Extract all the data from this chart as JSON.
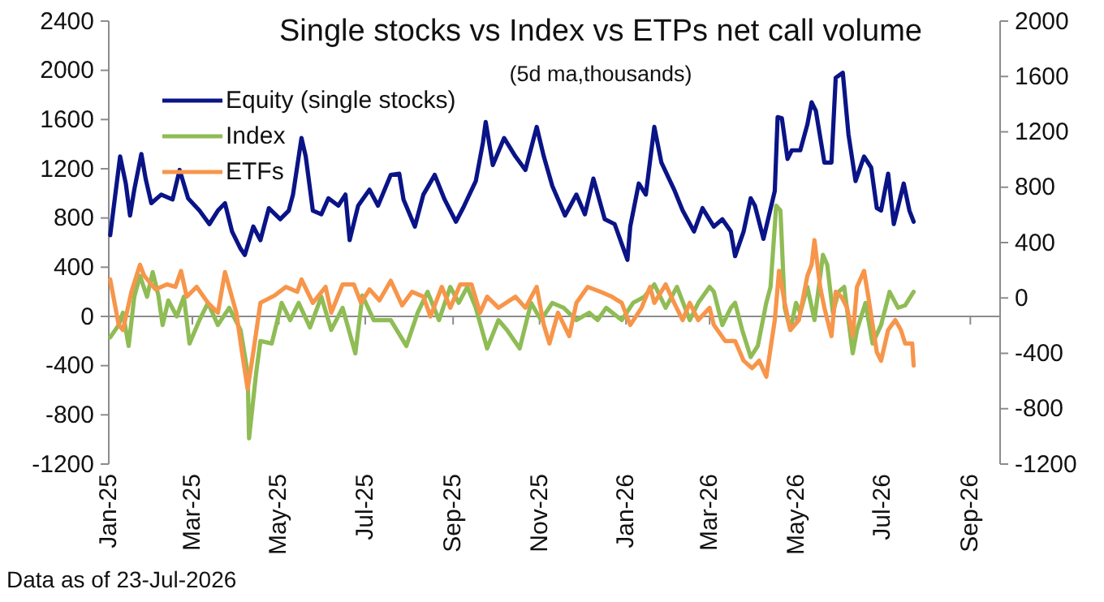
{
  "chart_data": {
    "type": "line",
    "title": "Single stocks vs Index vs ETPs net call volume",
    "subtitle": "(5d ma,thousands)",
    "annotations": [
      "Data as of 23-Jul-2026"
    ],
    "legend": "top left",
    "xlim": [
      "2025-01-01",
      "2026-09-22"
    ],
    "xticks": [
      {
        "value": "2025-01-01",
        "label": "Jan-25"
      },
      {
        "value": "2025-03-01",
        "label": "Mar-25"
      },
      {
        "value": "2025-05-01",
        "label": "May-25"
      },
      {
        "value": "2025-07-01",
        "label": "Jul-25"
      },
      {
        "value": "2025-09-01",
        "label": "Sep-25"
      },
      {
        "value": "2025-11-01",
        "label": "Nov-25"
      },
      {
        "value": "2026-01-01",
        "label": "Jan-26"
      },
      {
        "value": "2026-03-01",
        "label": "Mar-26"
      },
      {
        "value": "2026-05-01",
        "label": "May-26"
      },
      {
        "value": "2026-07-01",
        "label": "Jul-26"
      },
      {
        "value": "2026-09-01",
        "label": "Sep-26"
      }
    ],
    "ylim": [
      -1200,
      2400
    ],
    "yticks": [
      -1200,
      -800,
      -400,
      0,
      400,
      800,
      1200,
      1600,
      2000,
      2400
    ],
    "y2lim": [
      -1200,
      2000
    ],
    "y2ticks": [
      -1200,
      -800,
      -400,
      0,
      400,
      800,
      1200,
      1600,
      2000
    ],
    "series": [
      {
        "name": "Equity (single stocks)",
        "color": "#0a1487",
        "x": [
          "2025-01-02",
          "2025-01-09",
          "2025-01-13",
          "2025-01-16",
          "2025-01-19",
          "2025-01-24",
          "2025-01-27",
          "2025-01-31",
          "2025-02-07",
          "2025-02-15",
          "2025-02-20",
          "2025-02-26",
          "2025-03-06",
          "2025-03-13",
          "2025-03-19",
          "2025-03-24",
          "2025-03-29",
          "2025-04-04",
          "2025-04-07",
          "2025-04-13",
          "2025-04-18",
          "2025-04-24",
          "2025-05-02",
          "2025-05-08",
          "2025-05-11",
          "2025-05-17",
          "2025-05-20",
          "2025-05-25",
          "2025-05-31",
          "2025-06-05",
          "2025-06-12",
          "2025-06-17",
          "2025-06-20",
          "2025-06-26",
          "2025-07-04",
          "2025-07-10",
          "2025-07-19",
          "2025-07-25",
          "2025-07-28",
          "2025-08-05",
          "2025-08-11",
          "2025-08-19",
          "2025-08-26",
          "2025-09-03",
          "2025-09-08",
          "2025-09-17",
          "2025-09-22",
          "2025-09-24",
          "2025-09-29",
          "2025-10-07",
          "2025-10-15",
          "2025-10-22",
          "2025-10-30",
          "2025-11-04",
          "2025-11-10",
          "2025-11-19",
          "2025-11-27",
          "2025-12-03",
          "2025-12-09",
          "2025-12-17",
          "2025-12-24",
          "2026-01-02",
          "2026-01-04",
          "2026-01-10",
          "2026-01-15",
          "2026-01-21",
          "2026-01-26",
          "2026-02-04",
          "2026-02-10",
          "2026-02-18",
          "2026-02-24",
          "2026-03-04",
          "2026-03-10",
          "2026-03-16",
          "2026-03-19",
          "2026-03-25",
          "2026-03-30",
          "2026-04-02",
          "2026-04-08",
          "2026-04-16",
          "2026-04-18",
          "2026-04-21",
          "2026-04-25",
          "2026-04-28",
          "2026-05-04",
          "2026-05-09",
          "2026-05-12",
          "2026-05-15",
          "2026-05-21",
          "2026-05-26",
          "2026-05-29",
          "2026-06-03",
          "2026-06-07",
          "2026-06-12",
          "2026-06-18",
          "2026-06-23",
          "2026-06-27",
          "2026-06-30",
          "2026-07-05",
          "2026-07-09",
          "2026-07-16",
          "2026-07-20",
          "2026-07-23"
        ],
        "values": [
          660,
          1300,
          1080,
          820,
          1030,
          1320,
          1120,
          920,
          990,
          950,
          1190,
          960,
          860,
          750,
          860,
          920,
          690,
          550,
          500,
          730,
          620,
          880,
          790,
          860,
          990,
          1450,
          1300,
          860,
          830,
          960,
          900,
          990,
          620,
          900,
          1030,
          900,
          1150,
          1160,
          950,
          730,
          990,
          1150,
          950,
          770,
          880,
          1100,
          1410,
          1580,
          1230,
          1450,
          1300,
          1190,
          1540,
          1300,
          1060,
          820,
          990,
          830,
          1120,
          790,
          750,
          460,
          730,
          1080,
          990,
          1540,
          1250,
          1030,
          860,
          690,
          880,
          730,
          790,
          690,
          490,
          690,
          960,
          900,
          630,
          1020,
          1620,
          1610,
          1280,
          1350,
          1350,
          1560,
          1740,
          1670,
          1250,
          1250,
          1940,
          1980,
          1480,
          1100,
          1300,
          1210,
          880,
          860,
          1160,
          750,
          1080,
          860,
          770
        ]
      },
      {
        "name": "Index",
        "color": "#8fbc55",
        "x": [
          "2025-01-02",
          "2025-01-08",
          "2025-01-11",
          "2025-01-15",
          "2025-01-19",
          "2025-01-23",
          "2025-01-28",
          "2025-02-01",
          "2025-02-05",
          "2025-02-08",
          "2025-02-12",
          "2025-02-18",
          "2025-02-23",
          "2025-02-27",
          "2025-03-06",
          "2025-03-12",
          "2025-03-19",
          "2025-03-27",
          "2025-04-04",
          "2025-04-09",
          "2025-04-10",
          "2025-04-15",
          "2025-04-18",
          "2025-04-26",
          "2025-05-03",
          "2025-05-09",
          "2025-05-15",
          "2025-05-23",
          "2025-05-31",
          "2025-06-07",
          "2025-06-15",
          "2025-06-24",
          "2025-06-29",
          "2025-07-07",
          "2025-07-19",
          "2025-07-30",
          "2025-08-07",
          "2025-08-14",
          "2025-08-22",
          "2025-08-30",
          "2025-09-05",
          "2025-09-11",
          "2025-09-17",
          "2025-09-25",
          "2025-10-03",
          "2025-10-09",
          "2025-10-18",
          "2025-10-26",
          "2025-11-02",
          "2025-11-10",
          "2025-11-18",
          "2025-11-27",
          "2025-12-06",
          "2025-12-12",
          "2025-12-18",
          "2025-12-29",
          "2026-01-06",
          "2026-01-14",
          "2026-01-21",
          "2026-01-29",
          "2026-02-06",
          "2026-02-15",
          "2026-02-21",
          "2026-03-01",
          "2026-03-04",
          "2026-03-10",
          "2026-03-16",
          "2026-03-19",
          "2026-03-24",
          "2026-03-30",
          "2026-04-04",
          "2026-04-10",
          "2026-04-13",
          "2026-04-17",
          "2026-04-20",
          "2026-04-23",
          "2026-04-27",
          "2026-05-01",
          "2026-05-04",
          "2026-05-09",
          "2026-05-14",
          "2026-05-20",
          "2026-05-23",
          "2026-05-27",
          "2026-05-31",
          "2026-06-04",
          "2026-06-10",
          "2026-06-13",
          "2026-06-19",
          "2026-06-24",
          "2026-06-30",
          "2026-07-06",
          "2026-07-12",
          "2026-07-17",
          "2026-07-23"
        ],
        "values": [
          -170,
          -70,
          30,
          -240,
          160,
          330,
          160,
          360,
          170,
          -70,
          130,
          0,
          160,
          -220,
          -30,
          110,
          -70,
          70,
          -110,
          -460,
          -990,
          -460,
          -200,
          -220,
          110,
          -30,
          110,
          -90,
          160,
          -110,
          70,
          -300,
          170,
          -30,
          -30,
          -240,
          30,
          200,
          -30,
          240,
          110,
          240,
          70,
          -260,
          -30,
          -110,
          -260,
          110,
          -30,
          110,
          70,
          -30,
          30,
          -30,
          70,
          -30,
          110,
          160,
          260,
          70,
          240,
          -30,
          110,
          240,
          200,
          -70,
          70,
          110,
          -110,
          -330,
          -240,
          110,
          240,
          900,
          860,
          70,
          -110,
          110,
          30,
          240,
          -30,
          500,
          420,
          30,
          200,
          240,
          -300,
          -110,
          110,
          -220,
          -70,
          200,
          70,
          90,
          200
        ]
      },
      {
        "name": "ETFs",
        "color": "#f7954a",
        "x": [
          "2025-01-02",
          "2025-01-08",
          "2025-01-11",
          "2025-01-17",
          "2025-01-23",
          "2025-01-26",
          "2025-02-03",
          "2025-02-11",
          "2025-02-17",
          "2025-02-21",
          "2025-02-25",
          "2025-03-04",
          "2025-03-12",
          "2025-03-19",
          "2025-03-24",
          "2025-04-01",
          "2025-04-05",
          "2025-04-09",
          "2025-04-13",
          "2025-04-18",
          "2025-04-28",
          "2025-05-06",
          "2025-05-14",
          "2025-05-17",
          "2025-05-25",
          "2025-06-03",
          "2025-06-07",
          "2025-06-15",
          "2025-06-23",
          "2025-06-28",
          "2025-07-04",
          "2025-07-11",
          "2025-07-19",
          "2025-07-27",
          "2025-08-03",
          "2025-08-11",
          "2025-08-16",
          "2025-08-24",
          "2025-08-30",
          "2025-09-06",
          "2025-09-14",
          "2025-09-20",
          "2025-09-25",
          "2025-10-03",
          "2025-10-15",
          "2025-10-22",
          "2025-10-30",
          "2025-11-04",
          "2025-11-08",
          "2025-11-14",
          "2025-11-22",
          "2025-11-27",
          "2025-12-05",
          "2025-12-14",
          "2025-12-22",
          "2025-12-29",
          "2026-01-04",
          "2026-01-12",
          "2026-01-18",
          "2026-01-21",
          "2026-01-29",
          "2026-02-04",
          "2026-02-10",
          "2026-02-15",
          "2026-02-21",
          "2026-03-01",
          "2026-03-04",
          "2026-03-12",
          "2026-03-19",
          "2026-03-25",
          "2026-03-31",
          "2026-04-05",
          "2026-04-10",
          "2026-04-16",
          "2026-04-19",
          "2026-04-23",
          "2026-04-27",
          "2026-05-03",
          "2026-05-09",
          "2026-05-12",
          "2026-05-14",
          "2026-05-18",
          "2026-05-21",
          "2026-05-26",
          "2026-05-29",
          "2026-06-02",
          "2026-06-06",
          "2026-06-10",
          "2026-06-13",
          "2026-06-18",
          "2026-06-21",
          "2026-06-27",
          "2026-06-30",
          "2026-07-05",
          "2026-07-10",
          "2026-07-14",
          "2026-07-17",
          "2026-07-22",
          "2026-07-23"
        ],
        "values": [
          300,
          -70,
          -110,
          200,
          420,
          330,
          220,
          260,
          240,
          370,
          160,
          240,
          110,
          30,
          360,
          30,
          -290,
          -590,
          -290,
          110,
          170,
          240,
          200,
          300,
          110,
          240,
          30,
          260,
          260,
          110,
          220,
          130,
          290,
          90,
          200,
          160,
          0,
          240,
          70,
          260,
          260,
          30,
          160,
          70,
          160,
          70,
          240,
          -70,
          -220,
          30,
          -160,
          110,
          240,
          200,
          160,
          110,
          -70,
          70,
          240,
          110,
          260,
          110,
          -30,
          110,
          -30,
          70,
          -70,
          -200,
          -200,
          -360,
          -420,
          -360,
          -490,
          -30,
          370,
          110,
          -110,
          -30,
          330,
          420,
          620,
          240,
          70,
          -160,
          200,
          160,
          70,
          -160,
          240,
          370,
          160,
          -290,
          -360,
          -110,
          -30,
          -110,
          -220,
          -220,
          -400
        ]
      }
    ]
  }
}
